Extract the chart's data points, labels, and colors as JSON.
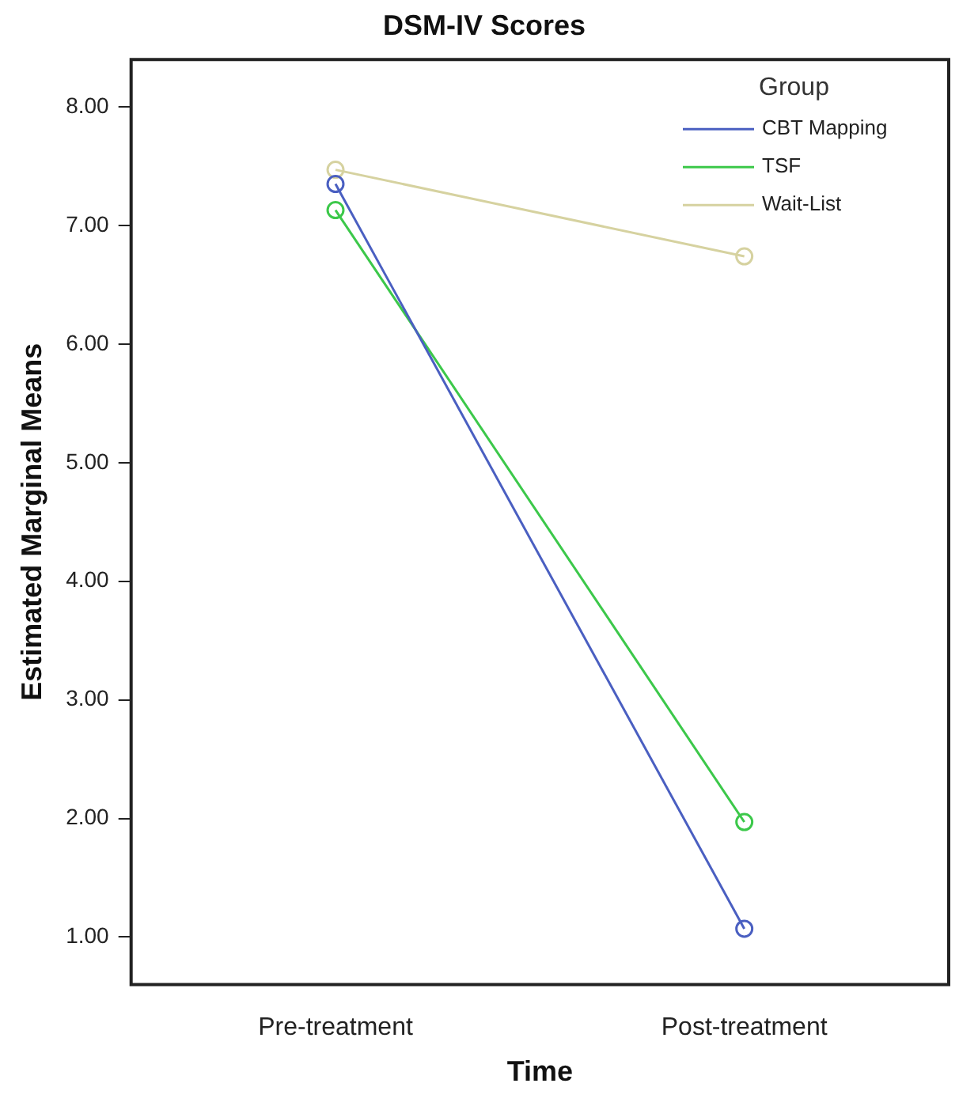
{
  "chart_data": {
    "type": "line",
    "title": "DSM-IV Scores",
    "xlabel": "Time",
    "ylabel": "Estimated Marginal Means",
    "legend_title": "Group",
    "categories": [
      "Pre-treatment",
      "Post-treatment"
    ],
    "series": [
      {
        "name": "CBT Mapping",
        "color": "#4a5fc1",
        "values": [
          7.35,
          1.07
        ]
      },
      {
        "name": "TSF",
        "color": "#3cc84a",
        "values": [
          7.13,
          1.97
        ]
      },
      {
        "name": "Wait-List",
        "color": "#d6d2a0",
        "values": [
          7.47,
          6.74
        ]
      }
    ],
    "ylim": [
      0.6,
      8.4
    ],
    "yticks": [
      {
        "value": 1,
        "label": "1.00"
      },
      {
        "value": 2,
        "label": "2.00"
      },
      {
        "value": 3,
        "label": "3.00"
      },
      {
        "value": 4,
        "label": "4.00"
      },
      {
        "value": 5,
        "label": "5.00"
      },
      {
        "value": 6,
        "label": "6.00"
      },
      {
        "value": 7,
        "label": "7.00"
      },
      {
        "value": 8,
        "label": "8.00"
      }
    ],
    "grid": false,
    "legend": "top right",
    "marker": "circle",
    "line_style": "solid"
  }
}
